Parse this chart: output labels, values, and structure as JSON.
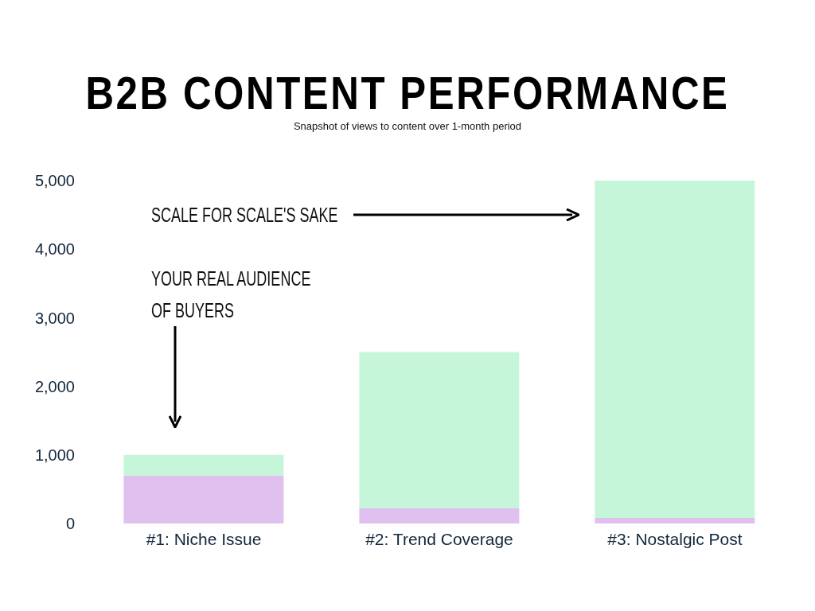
{
  "chart_data": {
    "type": "bar",
    "title": "B2B CONTENT PERFORMANCE",
    "subtitle": "Snapshot of views to content over 1-month period",
    "categories": [
      "#1: Niche Issue",
      "#2: Trend Coverage",
      "#3: Nostalgic Post"
    ],
    "stacked": true,
    "series": [
      {
        "color": "#dfc0ee",
        "values": [
          700,
          220,
          80
        ]
      },
      {
        "color": "#c6f6d9",
        "values": [
          300,
          2280,
          4920
        ]
      }
    ],
    "ylim": [
      0,
      5000
    ],
    "yticks": [
      {
        "value": 0,
        "label": "0"
      },
      {
        "value": 1000,
        "label": "1,000"
      },
      {
        "value": 2000,
        "label": "2,000"
      },
      {
        "value": 3000,
        "label": "3,000"
      },
      {
        "value": 4000,
        "label": "4,000"
      },
      {
        "value": 5000,
        "label": "5,000"
      }
    ],
    "grid": false,
    "legend": false,
    "annotations": [
      "SCALE FOR SCALE'S SAKE",
      "YOUR REAL AUDIENCE OF BUYERS"
    ]
  }
}
